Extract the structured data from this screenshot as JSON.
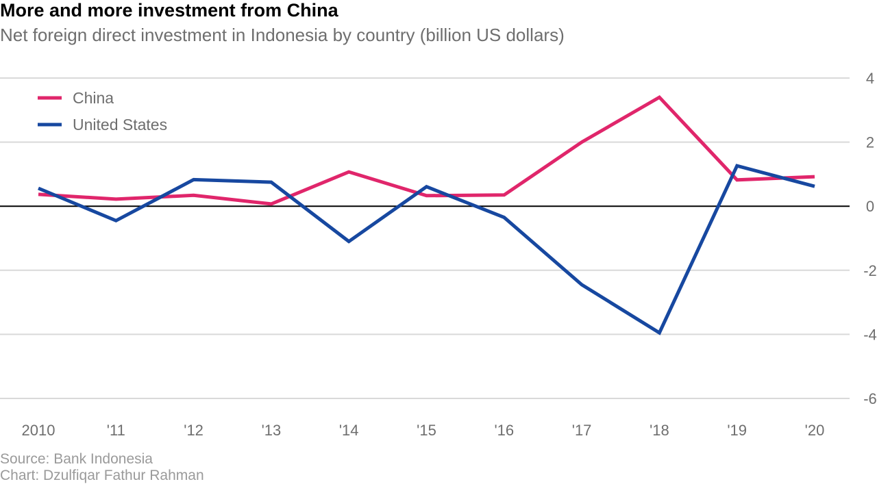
{
  "header": {
    "title": "More and more investment from China",
    "subtitle": "Net foreign direct investment in Indonesia by country (billion US dollars)"
  },
  "footer": {
    "source": "Source: Bank Indonesia",
    "credit": "Chart: Dzulfiqar Fathur Rahman"
  },
  "chart_data": {
    "type": "line",
    "title": "More and more investment from China",
    "subtitle": "Net foreign direct investment in Indonesia by country (billion US dollars)",
    "xlabel": "",
    "ylabel": "",
    "categories": [
      "2010",
      "'11",
      "'12",
      "'13",
      "'14",
      "'15",
      "'16",
      "'17",
      "'18",
      "'19",
      "'20"
    ],
    "series": [
      {
        "name": "China",
        "color": "#e0266b",
        "values": [
          0.37,
          0.22,
          0.34,
          0.07,
          1.07,
          0.33,
          0.35,
          2.0,
          3.4,
          0.82,
          0.92
        ]
      },
      {
        "name": "United States",
        "color": "#1748a0",
        "values": [
          0.56,
          -0.45,
          0.83,
          0.75,
          -1.1,
          0.61,
          -0.35,
          -2.45,
          -3.95,
          1.26,
          0.62
        ]
      }
    ],
    "ylim": [
      -6,
      4
    ],
    "yticks": [
      "4",
      "2",
      "0",
      "-2",
      "-4",
      "-6"
    ],
    "ytick_values": [
      4,
      2,
      0,
      -2,
      -4,
      -6
    ],
    "grid": true,
    "y_axis_side": "right",
    "legend_position": "top-left"
  }
}
